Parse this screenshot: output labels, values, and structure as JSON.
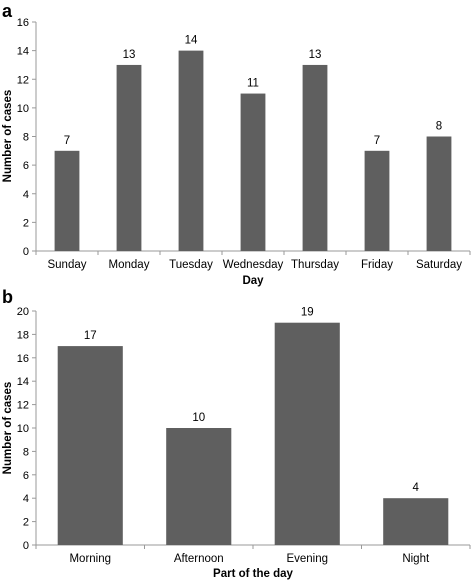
{
  "chart_data": [
    {
      "panel": "a",
      "type": "bar",
      "categories": [
        "Sunday",
        "Monday",
        "Tuesday",
        "Wednesday",
        "Thursday",
        "Friday",
        "Saturday"
      ],
      "values": [
        7,
        13,
        14,
        11,
        13,
        7,
        8
      ],
      "xlabel": "Day",
      "ylabel": "Number of cases",
      "ylim": [
        0,
        16
      ],
      "yticks": [
        0,
        2,
        4,
        6,
        8,
        10,
        12,
        14,
        16
      ],
      "bar_color": "#5f5f5f",
      "grid": false,
      "data_labels": true
    },
    {
      "panel": "b",
      "type": "bar",
      "categories": [
        "Morning",
        "Afternoon",
        "Evening",
        "Night"
      ],
      "values": [
        17,
        10,
        19,
        4
      ],
      "xlabel": "Part of the day",
      "ylabel": "Number of cases",
      "ylim": [
        0,
        20
      ],
      "yticks": [
        0,
        2,
        4,
        6,
        8,
        10,
        12,
        14,
        16,
        18,
        20
      ],
      "bar_color": "#5f5f5f",
      "grid": false,
      "data_labels": true
    }
  ]
}
